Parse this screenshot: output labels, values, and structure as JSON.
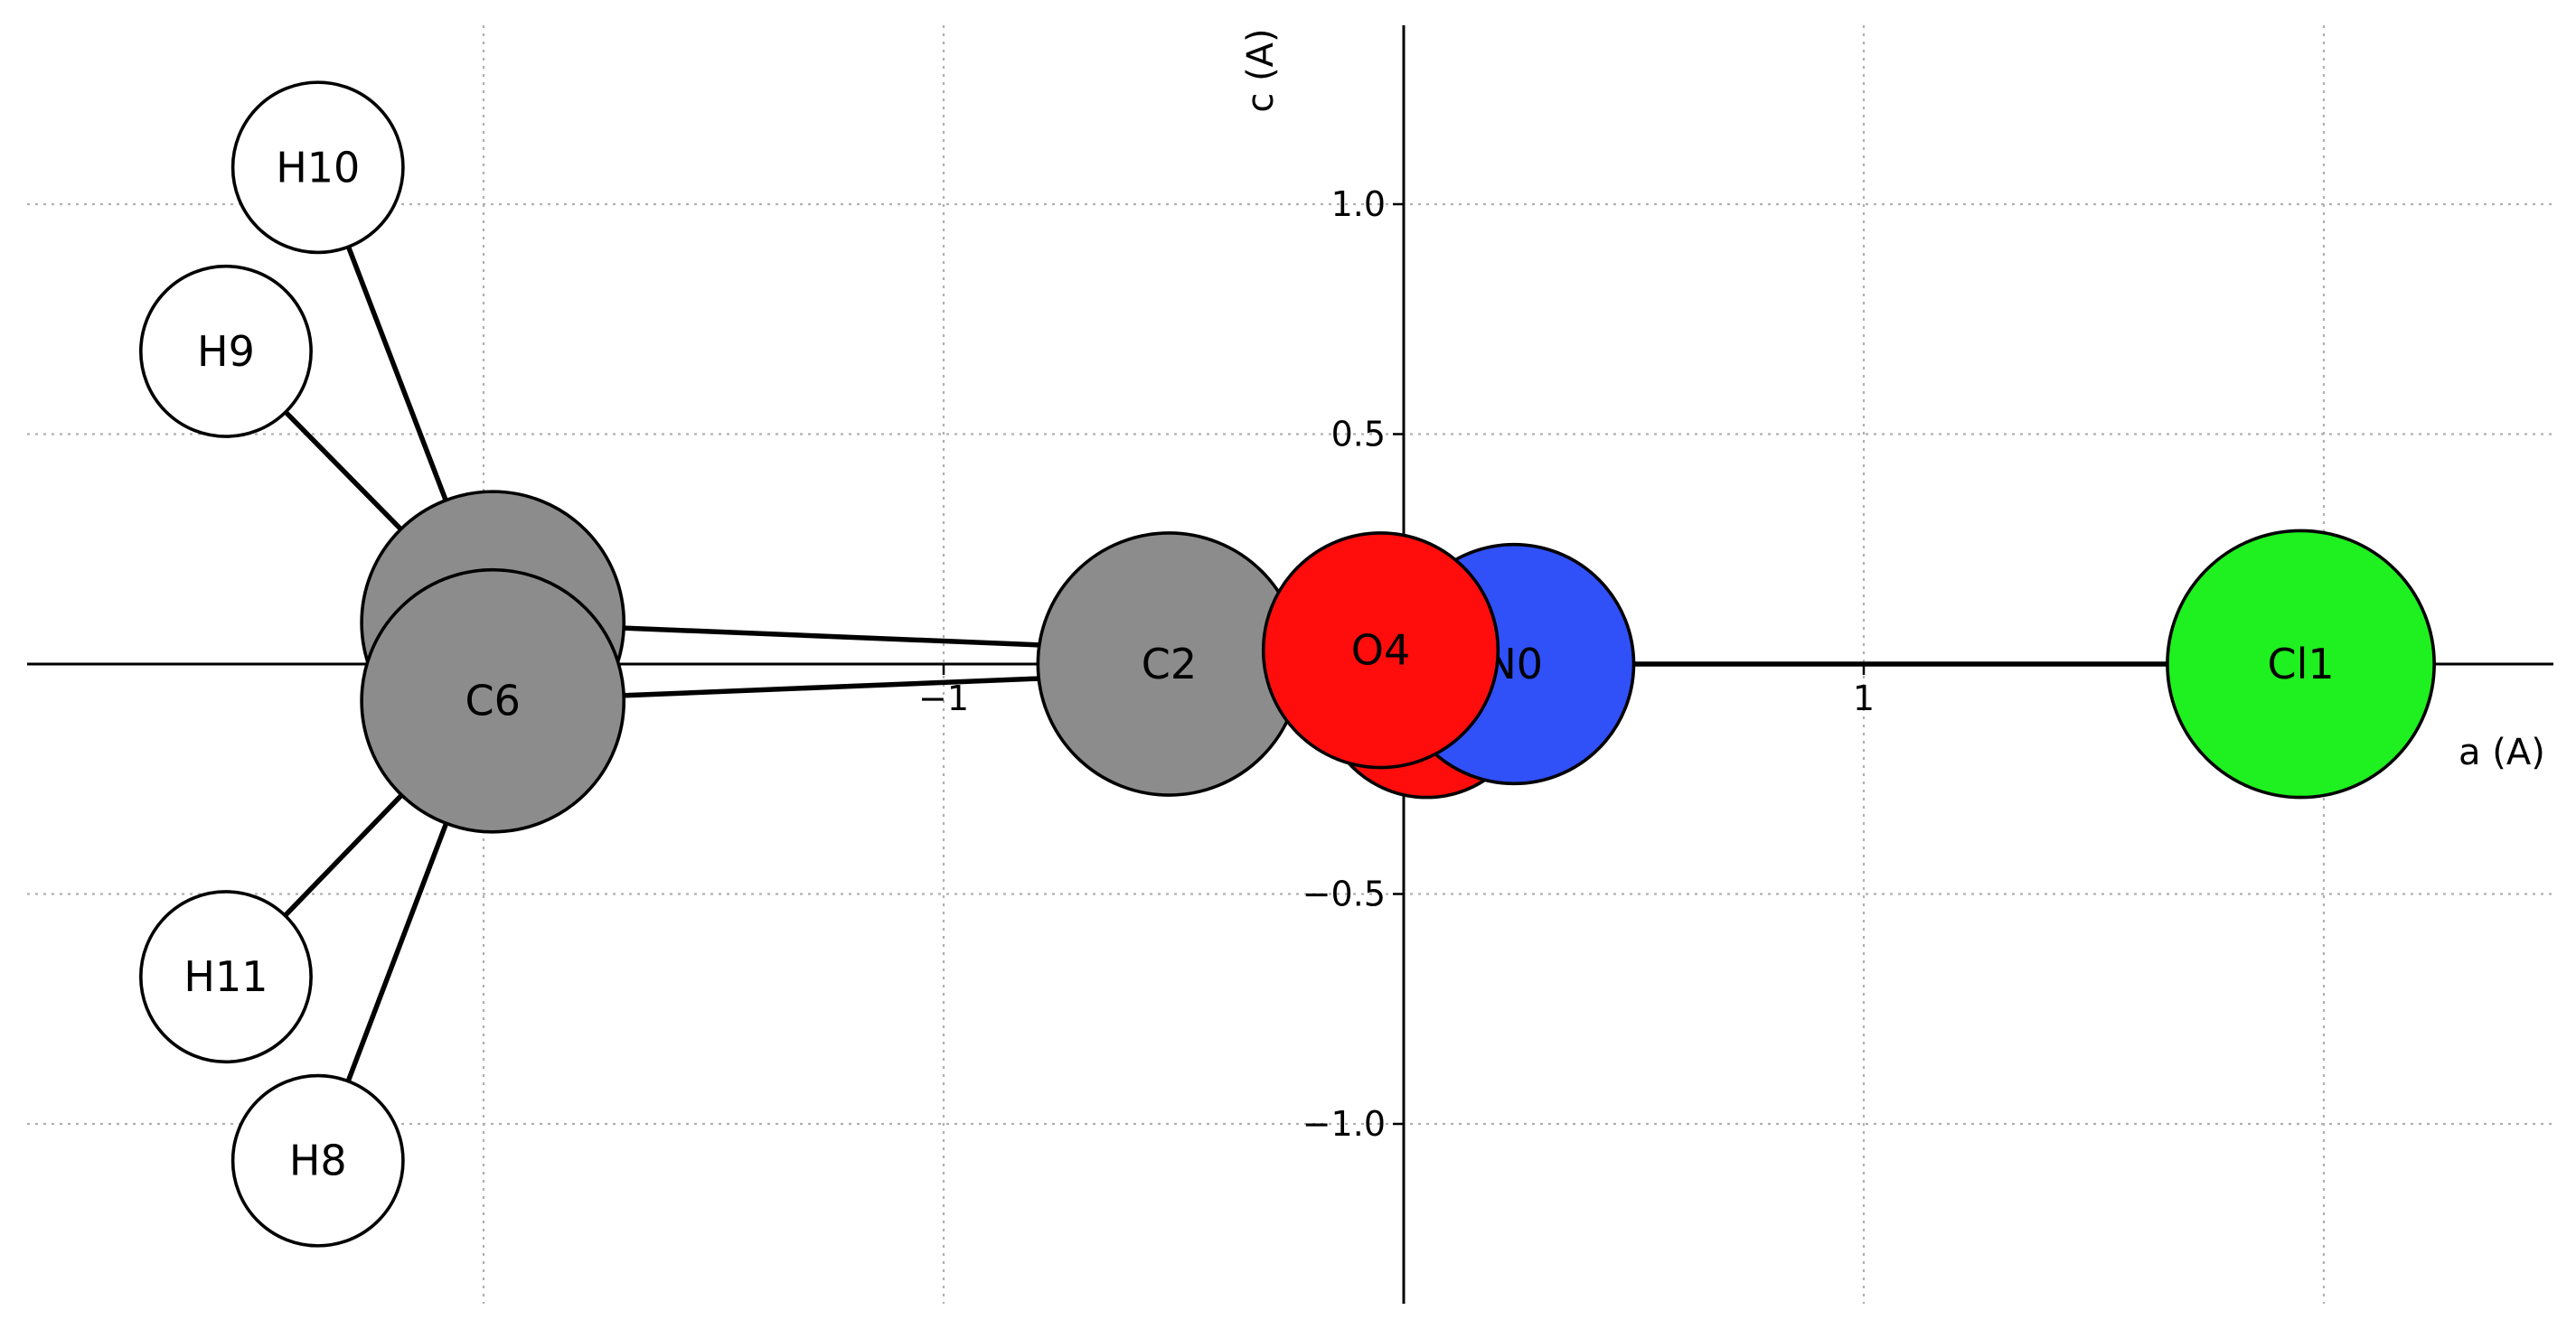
{
  "chart_data": {
    "type": "scatter",
    "title": "",
    "xlabel": "a (A)",
    "ylabel": "c (A)",
    "xlim": [
      -3.0,
      2.5
    ],
    "ylim": [
      -1.4,
      1.4
    ],
    "grid": true,
    "x_ticks": [
      {
        "value": -1,
        "label": "−1"
      },
      {
        "value": 1,
        "label": "1"
      }
    ],
    "y_ticks": [
      {
        "value": 1.0,
        "label": "1.0"
      },
      {
        "value": 0.5,
        "label": "0.5"
      },
      {
        "value": -0.5,
        "label": "−0.5"
      },
      {
        "value": -1.0,
        "label": "−1.0"
      }
    ],
    "grid_x": [
      -2,
      -1,
      1,
      2
    ],
    "grid_y": [
      -1.0,
      -0.5,
      0.5,
      1.0
    ],
    "atoms": [
      {
        "label": "",
        "element": "C",
        "color": "#8c8c8c",
        "x": -1.98,
        "y": 0.09,
        "radius": 0.285
      },
      {
        "label": "C2",
        "element": "C",
        "color": "#8c8c8c",
        "x": -0.51,
        "y": 0.28,
        "radius": 0.0,
        "hidden": true
      },
      {
        "label": "",
        "element": "O",
        "color": "#ff0d0d",
        "x": 0.05,
        "y": -0.06,
        "radius": 0.23
      },
      {
        "label": "N0",
        "element": "N",
        "color": "#3050f8",
        "x": 0.24,
        "y": 0.0,
        "radius": 0.26
      },
      {
        "label": "C2",
        "element": "C",
        "color": "#8c8c8c",
        "x": -0.51,
        "y": 0.0,
        "radius": 0.285
      },
      {
        "label": "O4",
        "element": "O",
        "color": "#ff0d0d",
        "x": -0.05,
        "y": 0.03,
        "radius": 0.255
      },
      {
        "label": "C6",
        "element": "C",
        "color": "#8c8c8c",
        "x": -1.98,
        "y": -0.08,
        "radius": 0.285
      },
      {
        "label": "H10",
        "element": "H",
        "color": "#ffffff",
        "x": -2.36,
        "y": 1.08,
        "radius": 0.185
      },
      {
        "label": "H9",
        "element": "H",
        "color": "#ffffff",
        "x": -2.56,
        "y": 0.68,
        "radius": 0.185
      },
      {
        "label": "H11",
        "element": "H",
        "color": "#ffffff",
        "x": -2.56,
        "y": -0.68,
        "radius": 0.185
      },
      {
        "label": "H8",
        "element": "H",
        "color": "#ffffff",
        "x": -2.36,
        "y": -1.08,
        "radius": 0.185
      },
      {
        "label": "Cl1",
        "element": "Cl",
        "color": "#1ff01f",
        "x": 1.95,
        "y": 0.0,
        "radius": 0.29
      }
    ],
    "bonds": [
      {
        "from": [
          -1.98,
          0.09
        ],
        "to": [
          -0.51,
          0.03
        ]
      },
      {
        "from": [
          -1.98,
          -0.08
        ],
        "to": [
          -0.51,
          -0.02
        ]
      },
      {
        "from": [
          -1.98,
          0.09
        ],
        "to": [
          -2.36,
          1.08
        ]
      },
      {
        "from": [
          -1.98,
          0.09
        ],
        "to": [
          -2.56,
          0.68
        ]
      },
      {
        "from": [
          -1.98,
          -0.08
        ],
        "to": [
          -2.56,
          -0.68
        ]
      },
      {
        "from": [
          -1.98,
          -0.08
        ],
        "to": [
          -2.36,
          -1.08
        ]
      },
      {
        "from": [
          0.24,
          0.0
        ],
        "to": [
          1.95,
          0.0
        ]
      }
    ]
  }
}
